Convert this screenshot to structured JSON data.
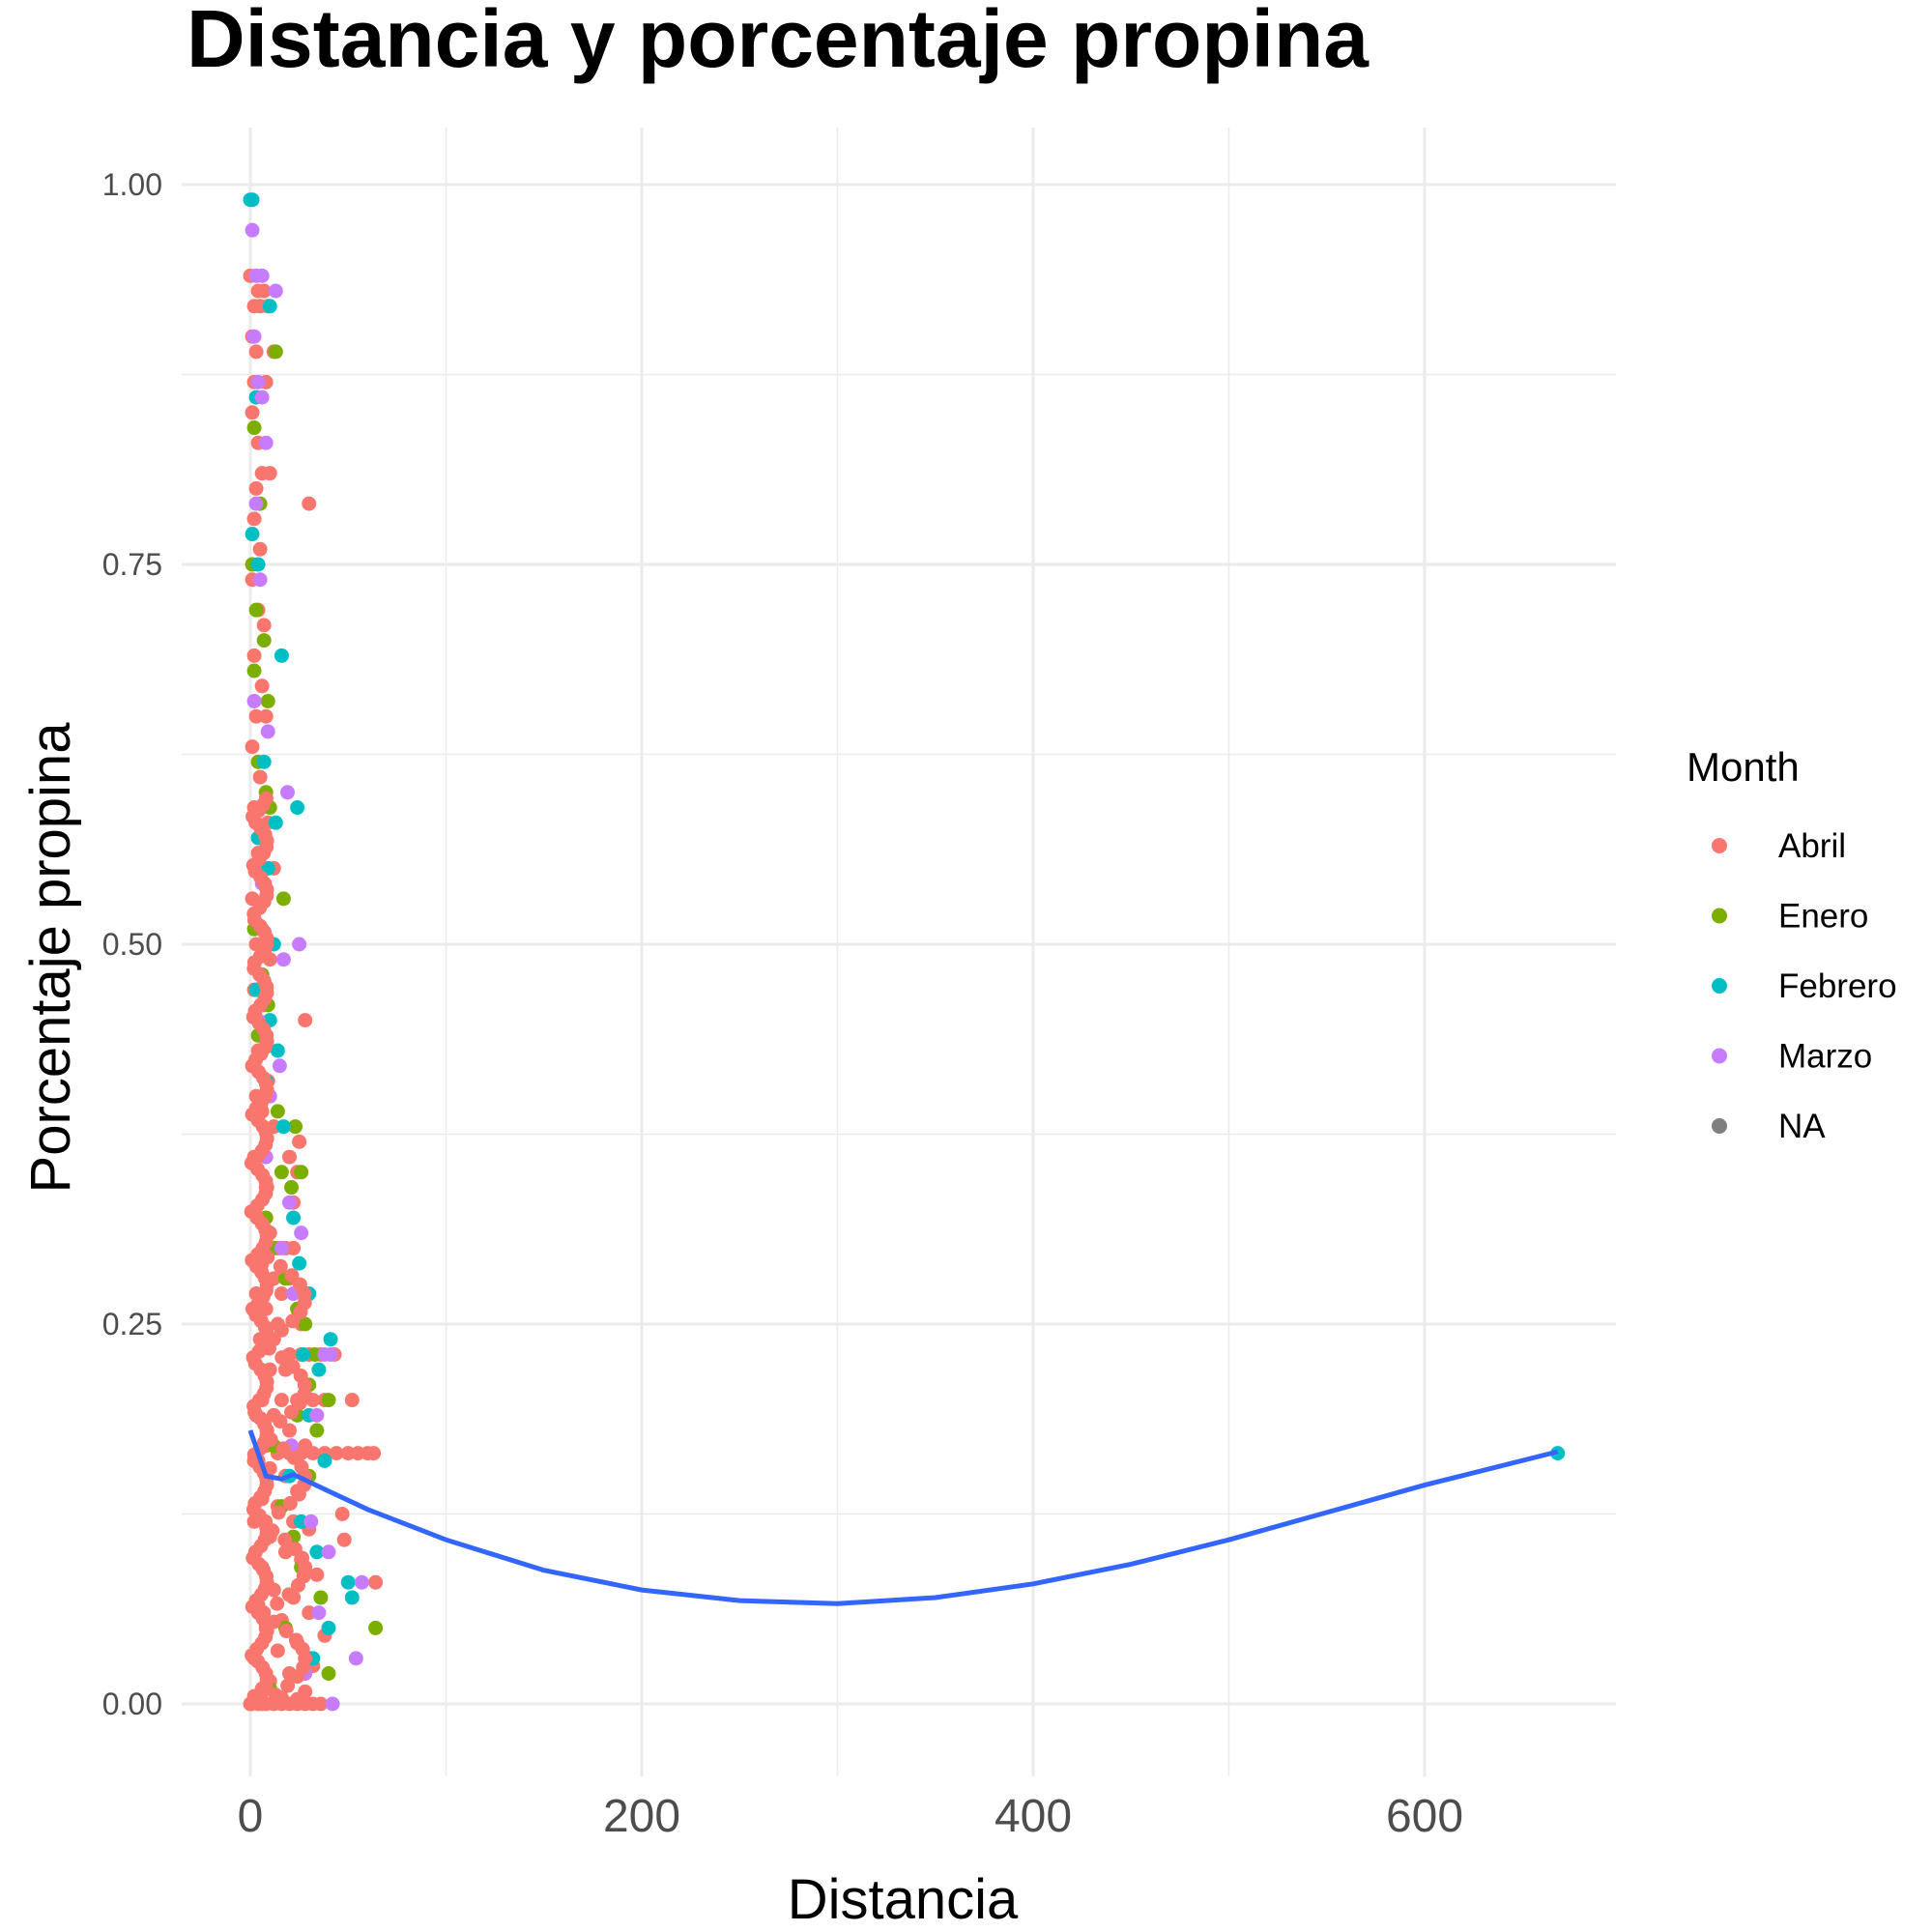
{
  "chart_data": {
    "type": "scatter",
    "title": "Distancia y porcentaje propina",
    "xlabel": "Distancia",
    "ylabel": "Porcentaje propina",
    "xlim": [
      -15,
      700
    ],
    "ylim": [
      -0.05,
      1.04
    ],
    "x_ticks": [
      0,
      200,
      400,
      600
    ],
    "y_ticks": [
      0.0,
      0.25,
      0.5,
      0.75,
      1.0
    ],
    "x_tick_labels": [
      "0",
      "200",
      "400",
      "600"
    ],
    "y_tick_labels": [
      "0.00",
      "0.25",
      "0.50",
      "0.75",
      "1.00"
    ],
    "grid": true,
    "legend": {
      "title": "Month",
      "placement": "right",
      "entries": [
        {
          "name": "Abril",
          "color": "#F8766D"
        },
        {
          "name": "Enero",
          "color": "#7CAE00"
        },
        {
          "name": "Febrero",
          "color": "#00BFC4"
        },
        {
          "name": "Marzo",
          "color": "#C77CFF"
        },
        {
          "name": "NA",
          "color": "#7F7F7F"
        }
      ]
    },
    "series": [
      {
        "name": "Abril",
        "color": "#F8766D",
        "points": [
          [
            0,
            0.94
          ],
          [
            4,
            0.93
          ],
          [
            7,
            0.93
          ],
          [
            2,
            0.92
          ],
          [
            5,
            0.92
          ],
          [
            9,
            0.92
          ],
          [
            1,
            0.9
          ],
          [
            3,
            0.89
          ],
          [
            12,
            0.89
          ],
          [
            2,
            0.87
          ],
          [
            8,
            0.87
          ],
          [
            1,
            0.85
          ],
          [
            4,
            0.83
          ],
          [
            6,
            0.81
          ],
          [
            10,
            0.81
          ],
          [
            3,
            0.8
          ],
          [
            30,
            0.79
          ],
          [
            2,
            0.78
          ],
          [
            5,
            0.76
          ],
          [
            1,
            0.74
          ],
          [
            4,
            0.72
          ],
          [
            7,
            0.71
          ],
          [
            2,
            0.69
          ],
          [
            6,
            0.67
          ],
          [
            3,
            0.65
          ],
          [
            8,
            0.65
          ],
          [
            1,
            0.63
          ],
          [
            5,
            0.61
          ],
          [
            2,
            0.59
          ],
          [
            9,
            0.58
          ],
          [
            4,
            0.56
          ],
          [
            12,
            0.55
          ],
          [
            1,
            0.53
          ],
          [
            6,
            0.51
          ],
          [
            3,
            0.5
          ],
          [
            10,
            0.49
          ],
          [
            2,
            0.47
          ],
          [
            7,
            0.46
          ],
          [
            28,
            0.45
          ],
          [
            4,
            0.43
          ],
          [
            1,
            0.42
          ],
          [
            9,
            0.41
          ],
          [
            3,
            0.4
          ],
          [
            6,
            0.39
          ],
          [
            12,
            0.38
          ],
          [
            25,
            0.37
          ],
          [
            2,
            0.36
          ],
          [
            20,
            0.36
          ],
          [
            24,
            0.35
          ],
          [
            8,
            0.34
          ],
          [
            22,
            0.33
          ],
          [
            4,
            0.32
          ],
          [
            10,
            0.31
          ],
          [
            14,
            0.3
          ],
          [
            18,
            0.3
          ],
          [
            22,
            0.3
          ],
          [
            6,
            0.29
          ],
          [
            12,
            0.28
          ],
          [
            20,
            0.28
          ],
          [
            3,
            0.27
          ],
          [
            16,
            0.27
          ],
          [
            8,
            0.26
          ],
          [
            14,
            0.25
          ],
          [
            26,
            0.25
          ],
          [
            5,
            0.24
          ],
          [
            12,
            0.24
          ],
          [
            20,
            0.23
          ],
          [
            26,
            0.23
          ],
          [
            30,
            0.23
          ],
          [
            36,
            0.23
          ],
          [
            43,
            0.23
          ],
          [
            10,
            0.22
          ],
          [
            18,
            0.22
          ],
          [
            28,
            0.21
          ],
          [
            6,
            0.2
          ],
          [
            16,
            0.2
          ],
          [
            24,
            0.2
          ],
          [
            32,
            0.2
          ],
          [
            38,
            0.2
          ],
          [
            52,
            0.2
          ],
          [
            3,
            0.19
          ],
          [
            12,
            0.19
          ],
          [
            20,
            0.18
          ],
          [
            8,
            0.17
          ],
          [
            28,
            0.17
          ],
          [
            14,
            0.165
          ],
          [
            20,
            0.165
          ],
          [
            26,
            0.165
          ],
          [
            32,
            0.165
          ],
          [
            38,
            0.165
          ],
          [
            44,
            0.165
          ],
          [
            50,
            0.165
          ],
          [
            55,
            0.165
          ],
          [
            60,
            0.165
          ],
          [
            63,
            0.165
          ],
          [
            4,
            0.16
          ],
          [
            10,
            0.155
          ],
          [
            18,
            0.15
          ],
          [
            24,
            0.14
          ],
          [
            6,
            0.135
          ],
          [
            14,
            0.13
          ],
          [
            22,
            0.12
          ],
          [
            47,
            0.125
          ],
          [
            2,
            0.12
          ],
          [
            30,
            0.115
          ],
          [
            10,
            0.11
          ],
          [
            48,
            0.108
          ],
          [
            18,
            0.1
          ],
          [
            26,
            0.095
          ],
          [
            6,
            0.09
          ],
          [
            34,
            0.085
          ],
          [
            64,
            0.08
          ],
          [
            12,
            0.075
          ],
          [
            22,
            0.07
          ],
          [
            4,
            0.065
          ],
          [
            30,
            0.06
          ],
          [
            16,
            0.055
          ],
          [
            8,
            0.05
          ],
          [
            38,
            0.045
          ],
          [
            24,
            0.04
          ],
          [
            14,
            0.035
          ],
          [
            2,
            0.03
          ],
          [
            32,
            0.025
          ],
          [
            20,
            0.02
          ],
          [
            10,
            0.015
          ],
          [
            6,
            0.01
          ],
          [
            28,
            0.008
          ],
          [
            2,
            0.005
          ],
          [
            16,
            0.004
          ],
          [
            24,
            0.003
          ],
          [
            0,
            0.0
          ],
          [
            4,
            0.0
          ],
          [
            8,
            0.0
          ],
          [
            12,
            0.0
          ],
          [
            16,
            0.0
          ],
          [
            20,
            0.0
          ],
          [
            24,
            0.0
          ],
          [
            28,
            0.0
          ],
          [
            32,
            0.0
          ],
          [
            36,
            0.0
          ]
        ]
      },
      {
        "name": "Enero",
        "color": "#7CAE00",
        "points": [
          [
            13,
            0.89
          ],
          [
            2,
            0.84
          ],
          [
            5,
            0.79
          ],
          [
            1,
            0.75
          ],
          [
            3,
            0.72
          ],
          [
            7,
            0.7
          ],
          [
            2,
            0.68
          ],
          [
            9,
            0.66
          ],
          [
            4,
            0.62
          ],
          [
            8,
            0.6
          ],
          [
            10,
            0.59
          ],
          [
            17,
            0.53
          ],
          [
            2,
            0.51
          ],
          [
            6,
            0.48
          ],
          [
            9,
            0.46
          ],
          [
            4,
            0.44
          ],
          [
            14,
            0.39
          ],
          [
            23,
            0.38
          ],
          [
            16,
            0.35
          ],
          [
            26,
            0.35
          ],
          [
            21,
            0.34
          ],
          [
            8,
            0.32
          ],
          [
            12,
            0.3
          ],
          [
            18,
            0.28
          ],
          [
            24,
            0.26
          ],
          [
            28,
            0.25
          ],
          [
            33,
            0.23
          ],
          [
            30,
            0.21
          ],
          [
            40,
            0.2
          ],
          [
            24,
            0.19
          ],
          [
            34,
            0.18
          ],
          [
            12,
            0.17
          ],
          [
            30,
            0.15
          ],
          [
            16,
            0.13
          ],
          [
            22,
            0.11
          ],
          [
            26,
            0.09
          ],
          [
            36,
            0.07
          ],
          [
            64,
            0.05
          ],
          [
            18,
            0.05
          ],
          [
            30,
            0.03
          ],
          [
            40,
            0.02
          ],
          [
            10,
            0.01
          ]
        ]
      },
      {
        "name": "Febrero",
        "color": "#00BFC4",
        "points": [
          [
            0,
            0.99
          ],
          [
            1,
            0.99
          ],
          [
            10,
            0.92
          ],
          [
            3,
            0.86
          ],
          [
            1,
            0.77
          ],
          [
            4,
            0.75
          ],
          [
            16,
            0.69
          ],
          [
            7,
            0.62
          ],
          [
            4,
            0.57
          ],
          [
            13,
            0.58
          ],
          [
            24,
            0.59
          ],
          [
            9,
            0.55
          ],
          [
            12,
            0.5
          ],
          [
            3,
            0.47
          ],
          [
            10,
            0.45
          ],
          [
            14,
            0.43
          ],
          [
            8,
            0.41
          ],
          [
            17,
            0.38
          ],
          [
            22,
            0.32
          ],
          [
            25,
            0.29
          ],
          [
            30,
            0.27
          ],
          [
            41,
            0.24
          ],
          [
            27,
            0.23
          ],
          [
            35,
            0.22
          ],
          [
            30,
            0.19
          ],
          [
            38,
            0.16
          ],
          [
            20,
            0.15
          ],
          [
            26,
            0.12
          ],
          [
            34,
            0.1
          ],
          [
            50,
            0.08
          ],
          [
            52,
            0.07
          ],
          [
            40,
            0.05
          ],
          [
            32,
            0.03
          ],
          [
            668,
            0.165
          ]
        ]
      },
      {
        "name": "Marzo",
        "color": "#C77CFF",
        "points": [
          [
            1,
            0.97
          ],
          [
            3,
            0.94
          ],
          [
            6,
            0.94
          ],
          [
            13,
            0.93
          ],
          [
            2,
            0.9
          ],
          [
            4,
            0.87
          ],
          [
            6,
            0.86
          ],
          [
            8,
            0.83
          ],
          [
            3,
            0.79
          ],
          [
            5,
            0.74
          ],
          [
            2,
            0.66
          ],
          [
            9,
            0.64
          ],
          [
            19,
            0.6
          ],
          [
            6,
            0.54
          ],
          [
            25,
            0.5
          ],
          [
            17,
            0.49
          ],
          [
            4,
            0.45
          ],
          [
            15,
            0.42
          ],
          [
            10,
            0.4
          ],
          [
            8,
            0.36
          ],
          [
            20,
            0.33
          ],
          [
            26,
            0.31
          ],
          [
            16,
            0.3
          ],
          [
            22,
            0.27
          ],
          [
            38,
            0.23
          ],
          [
            41,
            0.23
          ],
          [
            34,
            0.19
          ],
          [
            21,
            0.17
          ],
          [
            31,
            0.12
          ],
          [
            40,
            0.1
          ],
          [
            57,
            0.08
          ],
          [
            35,
            0.06
          ],
          [
            54,
            0.03
          ],
          [
            28,
            0.02
          ],
          [
            42,
            0.0
          ]
        ]
      }
    ],
    "smooth_line": {
      "color": "#3366FF",
      "points": [
        [
          0,
          0.18
        ],
        [
          8,
          0.15
        ],
        [
          16,
          0.148
        ],
        [
          22,
          0.151
        ],
        [
          40,
          0.14
        ],
        [
          60,
          0.128
        ],
        [
          100,
          0.108
        ],
        [
          150,
          0.088
        ],
        [
          200,
          0.075
        ],
        [
          250,
          0.068
        ],
        [
          300,
          0.066
        ],
        [
          350,
          0.07
        ],
        [
          400,
          0.079
        ],
        [
          450,
          0.092
        ],
        [
          500,
          0.108
        ],
        [
          550,
          0.126
        ],
        [
          600,
          0.144
        ],
        [
          668,
          0.166
        ]
      ]
    }
  }
}
